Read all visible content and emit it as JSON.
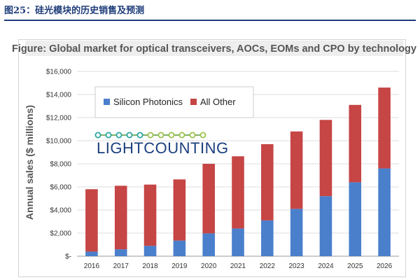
{
  "caption": "图25：硅光模块的历史销售及预测",
  "logo": {
    "text": "LIGHTCOUNTING"
  },
  "colors": {
    "silicon": "#4a7fcc",
    "other": "#c64545",
    "caption": "#1f3d7a"
  },
  "chart_data": {
    "type": "bar",
    "stacked": true,
    "title": "Figure: Global market for optical transceivers, AOCs, EOMs and CPO by technology",
    "ylabel": "Annual sales ($ millions)",
    "xlabel": "",
    "ylim": [
      0,
      16000
    ],
    "yticks": [
      "$-",
      "$2,000",
      "$4,000",
      "$6,000",
      "$8,000",
      "$10,000",
      "$12,000",
      "$14,000",
      "$16,000"
    ],
    "categories": [
      "2016",
      "2017",
      "2018",
      "2019",
      "2020",
      "2021",
      "2022",
      "2023",
      "2024",
      "2025",
      "2026"
    ],
    "series": [
      {
        "name": "Silicon Photonics",
        "values": [
          400,
          600,
          900,
          1350,
          1980,
          2400,
          3100,
          4100,
          5200,
          6400,
          7600
        ]
      },
      {
        "name": "All Other",
        "values": [
          5400,
          5500,
          5300,
          5300,
          6020,
          6250,
          6600,
          6700,
          6600,
          6700,
          7000
        ]
      }
    ],
    "legend_position": "top-left",
    "grid": true
  }
}
